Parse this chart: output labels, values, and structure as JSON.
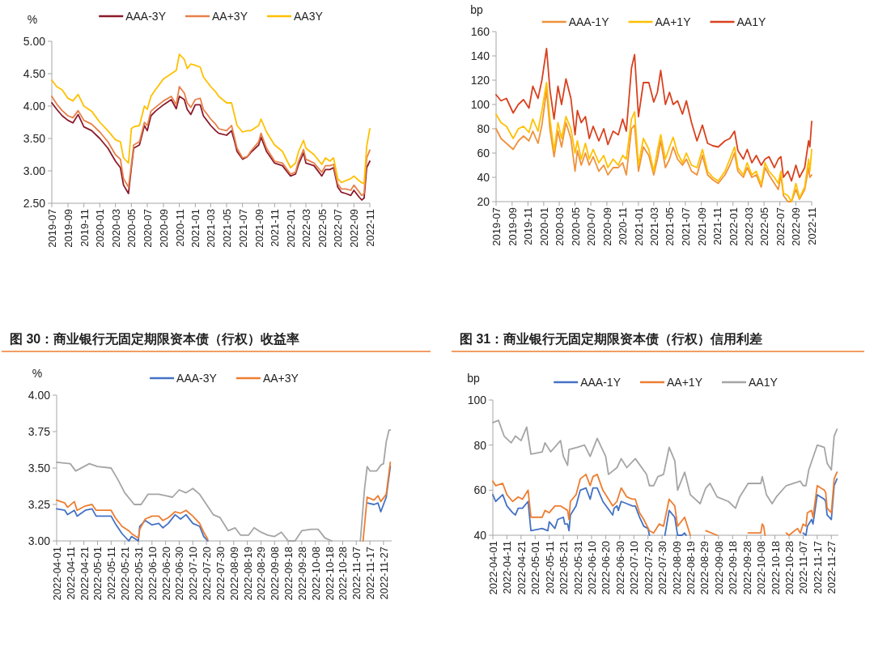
{
  "chart_data": [
    {
      "type": "line",
      "ylabel": "%",
      "legend": "top",
      "x": [
        "2019-07-01",
        "2019-07-20",
        "2019-08-10",
        "2019-09-01",
        "2019-09-20",
        "2019-10-10",
        "2019-11-01",
        "2019-12-01",
        "2020-01-01",
        "2020-02-01",
        "2020-03-01",
        "2020-03-20",
        "2020-04-01",
        "2020-04-20",
        "2020-05-01",
        "2020-05-10",
        "2020-06-01",
        "2020-06-20",
        "2020-07-01",
        "2020-07-15",
        "2020-08-01",
        "2020-09-01",
        "2020-10-01",
        "2020-10-20",
        "2020-11-01",
        "2020-11-20",
        "2020-12-01",
        "2020-12-15",
        "2021-01-01",
        "2021-01-20",
        "2021-02-01",
        "2021-03-01",
        "2021-03-20",
        "2021-04-01",
        "2021-05-01",
        "2021-05-20",
        "2021-06-01",
        "2021-06-10",
        "2021-07-01",
        "2021-07-20",
        "2021-08-01",
        "2021-09-01",
        "2021-09-10",
        "2021-10-01",
        "2021-11-01",
        "2021-12-01",
        "2022-01-01",
        "2022-01-20",
        "2022-02-01",
        "2022-02-20",
        "2022-03-01",
        "2022-04-01",
        "2022-05-01",
        "2022-05-15",
        "2022-06-01",
        "2022-06-15",
        "2022-07-01",
        "2022-07-15",
        "2022-08-01",
        "2022-08-20",
        "2022-09-01",
        "2022-09-20",
        "2022-10-01",
        "2022-10-10",
        "2022-10-20",
        "2022-11-01"
      ],
      "series": [
        {
          "name": "AAA-3Y",
          "color": "#8b1a2b",
          "values": [
            4.05,
            3.95,
            3.85,
            3.78,
            3.74,
            3.87,
            3.68,
            3.62,
            3.5,
            3.35,
            3.15,
            3.05,
            2.78,
            2.65,
            3.05,
            3.35,
            3.4,
            3.7,
            3.62,
            3.85,
            3.92,
            4.02,
            4.1,
            3.96,
            4.15,
            4.1,
            3.95,
            3.87,
            4.02,
            4.02,
            3.85,
            3.7,
            3.62,
            3.58,
            3.55,
            3.62,
            3.45,
            3.3,
            3.18,
            3.22,
            3.28,
            3.4,
            3.52,
            3.3,
            3.12,
            3.08,
            2.92,
            2.95,
            3.1,
            3.28,
            3.12,
            3.08,
            2.92,
            3.02,
            3.02,
            3.05,
            2.75,
            2.67,
            2.65,
            2.62,
            2.7,
            2.6,
            2.55,
            2.58,
            3.05,
            3.15
          ]
        },
        {
          "name": "AA+3Y",
          "color": "#e8804a",
          "values": [
            4.15,
            4.03,
            3.93,
            3.85,
            3.82,
            3.93,
            3.78,
            3.72,
            3.6,
            3.45,
            3.25,
            3.18,
            2.88,
            2.75,
            3.1,
            3.4,
            3.45,
            3.75,
            3.7,
            3.92,
            3.98,
            4.08,
            4.15,
            4.02,
            4.3,
            4.2,
            4.05,
            3.98,
            4.1,
            4.12,
            3.95,
            3.8,
            3.72,
            3.65,
            3.62,
            3.7,
            3.5,
            3.35,
            3.2,
            3.22,
            3.3,
            3.45,
            3.58,
            3.35,
            3.15,
            3.12,
            2.95,
            2.98,
            3.15,
            3.33,
            3.18,
            3.12,
            2.98,
            3.08,
            3.08,
            3.1,
            2.8,
            2.72,
            2.72,
            2.7,
            2.78,
            2.68,
            2.62,
            2.65,
            3.2,
            3.32
          ]
        },
        {
          "name": "AA3Y",
          "color": "#ffc000",
          "values": [
            4.4,
            4.3,
            4.25,
            4.12,
            4.08,
            4.18,
            4.0,
            3.92,
            3.75,
            3.62,
            3.48,
            3.45,
            3.2,
            3.12,
            3.65,
            3.68,
            3.7,
            4.0,
            3.95,
            4.15,
            4.25,
            4.42,
            4.5,
            4.55,
            4.8,
            4.72,
            4.58,
            4.65,
            4.63,
            4.6,
            4.45,
            4.3,
            4.22,
            4.15,
            4.05,
            4.05,
            3.85,
            3.7,
            3.6,
            3.62,
            3.62,
            3.7,
            3.8,
            3.6,
            3.4,
            3.3,
            3.05,
            3.12,
            3.3,
            3.47,
            3.35,
            3.25,
            3.1,
            3.2,
            3.15,
            3.2,
            2.88,
            2.82,
            2.85,
            2.88,
            2.92,
            2.85,
            2.82,
            2.8,
            3.38,
            3.65
          ]
        }
      ],
      "xlim": [
        "2019-07-01",
        "2022-11-01"
      ],
      "xticks": [
        "2019-07",
        "2019-09",
        "2019-11",
        "2020-01",
        "2020-03",
        "2020-05",
        "2020-07",
        "2020-09",
        "2020-11",
        "2021-01",
        "2021-03",
        "2021-05",
        "2021-07",
        "2021-09",
        "2021-11",
        "2022-01",
        "2022-03",
        "2022-05",
        "2022-07",
        "2022-09",
        "2022-11"
      ],
      "ylim": [
        2.5,
        5
      ],
      "yticks": [
        {
          "value": 2.5,
          "label": "2.50"
        },
        {
          "value": 3,
          "label": "3.00"
        },
        {
          "value": 3.5,
          "label": "3.50"
        },
        {
          "value": 4,
          "label": "4.00"
        },
        {
          "value": 4.5,
          "label": "4.50"
        },
        {
          "value": 5,
          "label": "5.00"
        }
      ]
    },
    {
      "type": "line",
      "ylabel": "bp",
      "legend": "top",
      "x": [
        "2019-07-01",
        "2019-07-20",
        "2019-08-10",
        "2019-09-05",
        "2019-09-25",
        "2019-10-15",
        "2019-11-05",
        "2019-11-20",
        "2019-12-10",
        "2019-12-25",
        "2020-01-12",
        "2020-01-25",
        "2020-02-10",
        "2020-02-25",
        "2020-03-10",
        "2020-03-27",
        "2020-04-15",
        "2020-05-01",
        "2020-05-10",
        "2020-05-25",
        "2020-06-10",
        "2020-06-25",
        "2020-07-10",
        "2020-08-01",
        "2020-08-20",
        "2020-09-05",
        "2020-09-25",
        "2020-10-15",
        "2020-11-01",
        "2020-11-15",
        "2020-12-05",
        "2020-12-17",
        "2021-01-01",
        "2021-01-20",
        "2021-02-10",
        "2021-03-01",
        "2021-03-15",
        "2021-03-28",
        "2021-04-15",
        "2021-05-01",
        "2021-05-15",
        "2021-06-01",
        "2021-06-20",
        "2021-07-05",
        "2021-07-25",
        "2021-08-15",
        "2021-09-05",
        "2021-09-25",
        "2021-10-15",
        "2021-11-05",
        "2021-12-01",
        "2021-12-20",
        "2022-01-07",
        "2022-01-20",
        "2022-02-10",
        "2022-02-25",
        "2022-03-15",
        "2022-04-01",
        "2022-04-20",
        "2022-05-05",
        "2022-05-20",
        "2022-06-10",
        "2022-06-25",
        "2022-07-05",
        "2022-07-15",
        "2022-08-01",
        "2022-08-15",
        "2022-09-01",
        "2022-09-15",
        "2022-10-05",
        "2022-10-20",
        "2022-10-25",
        "2022-11-01"
      ],
      "series": [
        {
          "name": "AAA-1Y",
          "color": "#f0913b",
          "values": [
            80,
            72,
            68,
            63,
            70,
            74,
            70,
            78,
            68,
            83,
            112,
            80,
            57,
            78,
            65,
            85,
            72,
            45,
            62,
            50,
            60,
            50,
            57,
            45,
            50,
            42,
            48,
            48,
            52,
            42,
            80,
            83,
            45,
            65,
            58,
            42,
            55,
            70,
            48,
            55,
            65,
            55,
            50,
            55,
            45,
            42,
            58,
            42,
            38,
            35,
            42,
            50,
            60,
            45,
            40,
            48,
            40,
            42,
            32,
            48,
            42,
            35,
            30,
            42,
            25,
            20,
            20,
            30,
            22,
            30,
            48,
            40,
            42
          ]
        },
        {
          "name": "AA+1Y",
          "color": "#ffc000",
          "values": [
            92,
            85,
            82,
            72,
            80,
            82,
            77,
            88,
            78,
            95,
            118,
            88,
            62,
            85,
            72,
            90,
            80,
            60,
            70,
            55,
            68,
            55,
            63,
            52,
            58,
            48,
            55,
            50,
            58,
            55,
            88,
            94,
            50,
            72,
            63,
            45,
            62,
            75,
            55,
            65,
            73,
            60,
            52,
            60,
            50,
            48,
            63,
            45,
            40,
            37,
            45,
            55,
            65,
            48,
            42,
            52,
            42,
            45,
            34,
            52,
            45,
            40,
            35,
            45,
            27,
            25,
            20,
            35,
            23,
            32,
            55,
            45,
            63
          ]
        },
        {
          "name": "AA1Y",
          "color": "#d9411e",
          "values": [
            108,
            103,
            105,
            93,
            100,
            104,
            97,
            115,
            105,
            120,
            146,
            112,
            88,
            115,
            100,
            121,
            105,
            75,
            95,
            85,
            90,
            72,
            82,
            70,
            80,
            67,
            78,
            75,
            88,
            78,
            130,
            141,
            90,
            118,
            118,
            102,
            110,
            128,
            100,
            110,
            100,
            103,
            92,
            103,
            85,
            70,
            83,
            68,
            66,
            65,
            70,
            72,
            78,
            62,
            55,
            63,
            52,
            58,
            50,
            55,
            57,
            48,
            55,
            57,
            40,
            45,
            37,
            50,
            40,
            48,
            70,
            65,
            86
          ]
        }
      ],
      "xlim": [
        "2019-07-01",
        "2022-11-01"
      ],
      "xticks": [
        "2019-07",
        "2019-09",
        "2019-11",
        "2020-01",
        "2020-03",
        "2020-05",
        "2020-07",
        "2020-09",
        "2020-11",
        "2021-01",
        "2021-03",
        "2021-05",
        "2021-07",
        "2021-09",
        "2021-11",
        "2022-01",
        "2022-03",
        "2022-05",
        "2022-07",
        "2022-09",
        "2022-11"
      ],
      "ylim": [
        20,
        160
      ],
      "yticks": [
        20,
        40,
        60,
        80,
        100,
        120,
        140,
        160
      ]
    },
    {
      "type": "line",
      "title": "图 30：商业银行无固定期限资本债（行权）收益率",
      "ylabel": "%",
      "legend": "top",
      "series": [
        {
          "name": "AAA-3Y",
          "color": "#4472c4",
          "x": [
            "2022-04-01",
            "2022-04-07",
            "2022-04-09",
            "2022-04-14",
            "2022-04-16",
            "2022-04-22",
            "2022-04-27",
            "2022-04-30",
            "2022-05-11",
            "2022-05-14",
            "2022-05-19",
            "2022-05-24",
            "2022-05-26",
            "2022-05-31",
            "2022-06-01",
            "2022-06-05",
            "2022-06-10",
            "2022-06-15",
            "2022-06-18",
            "2022-06-22",
            "2022-06-27",
            "2022-07-01",
            "2022-07-05",
            "2022-07-10",
            "2022-07-15",
            "2022-07-18",
            "2022-07-21",
            "2022-09-01",
            "2022-11-12",
            "2022-11-15",
            "2022-11-20",
            "2022-11-23",
            "2022-11-25",
            "2022-11-29",
            "2022-12-02"
          ],
          "values": [
            3.22,
            3.21,
            3.18,
            3.21,
            3.17,
            3.21,
            3.22,
            3.17,
            3.17,
            3.12,
            3.05,
            3.0,
            3.03,
            3.0,
            3.1,
            3.14,
            3.11,
            3.12,
            3.09,
            3.12,
            3.18,
            3.15,
            3.18,
            3.12,
            3.1,
            3.03,
            3.0,
            null,
            null,
            3.26,
            3.25,
            3.26,
            3.2,
            3.3,
            3.51
          ]
        },
        {
          "name": "AA+3Y",
          "color": "#ed7d31",
          "x": [
            "2022-04-01",
            "2022-04-07",
            "2022-04-09",
            "2022-04-14",
            "2022-04-16",
            "2022-04-22",
            "2022-04-27",
            "2022-04-30",
            "2022-05-11",
            "2022-05-14",
            "2022-05-19",
            "2022-05-24",
            "2022-05-26",
            "2022-05-31",
            "2022-06-01",
            "2022-06-05",
            "2022-06-10",
            "2022-06-15",
            "2022-06-18",
            "2022-06-22",
            "2022-06-27",
            "2022-07-01",
            "2022-07-05",
            "2022-07-10",
            "2022-07-15",
            "2022-07-18",
            "2022-07-21",
            "2022-09-01",
            "2022-11-12",
            "2022-11-15",
            "2022-11-20",
            "2022-11-23",
            "2022-11-25",
            "2022-11-29",
            "2022-12-02"
          ],
          "values": [
            3.28,
            3.26,
            3.23,
            3.27,
            3.21,
            3.24,
            3.25,
            3.21,
            3.21,
            3.16,
            3.1,
            3.07,
            3.05,
            3.02,
            3.08,
            3.15,
            3.17,
            3.17,
            3.14,
            3.16,
            3.2,
            3.19,
            3.21,
            3.17,
            3.12,
            3.06,
            3.01,
            null,
            3.0,
            3.3,
            3.28,
            3.31,
            3.27,
            3.32,
            3.54
          ]
        },
        {
          "color": "#a5a5a5",
          "x": [
            "2022-04-01",
            "2022-04-11",
            "2022-04-15",
            "2022-04-25",
            "2022-05-01",
            "2022-05-11",
            "2022-05-16",
            "2022-05-21",
            "2022-05-28",
            "2022-06-02",
            "2022-06-07",
            "2022-06-15",
            "2022-06-20",
            "2022-06-25",
            "2022-06-30",
            "2022-07-05",
            "2022-07-10",
            "2022-07-15",
            "2022-07-20",
            "2022-07-25",
            "2022-07-30",
            "2022-08-05",
            "2022-08-10",
            "2022-08-14",
            "2022-08-20",
            "2022-08-24",
            "2022-08-29",
            "2022-09-03",
            "2022-09-08",
            "2022-09-13",
            "2022-09-18",
            "2022-09-23",
            "2022-09-28",
            "2022-10-05",
            "2022-10-10",
            "2022-10-15",
            "2022-10-20",
            "2022-11-01",
            "2022-11-10",
            "2022-11-13",
            "2022-11-15",
            "2022-11-17",
            "2022-11-22",
            "2022-11-25",
            "2022-11-27",
            "2022-11-29",
            "2022-12-01",
            "2022-12-02"
          ],
          "values": [
            3.54,
            3.53,
            3.48,
            3.53,
            3.51,
            3.5,
            3.42,
            3.33,
            3.25,
            3.25,
            3.32,
            3.32,
            3.31,
            3.3,
            3.35,
            3.33,
            3.36,
            3.32,
            3.25,
            3.18,
            3.16,
            3.07,
            3.09,
            3.04,
            3.04,
            3.09,
            3.06,
            3.04,
            3.03,
            3.06,
            3.0,
            3.0,
            3.07,
            3.08,
            3.08,
            3.02,
            3.0,
            null,
            3.0,
            3.35,
            3.51,
            3.48,
            3.48,
            3.52,
            3.53,
            3.68,
            3.76,
            3.76
          ]
        }
      ],
      "xlim": [
        "2022-04-01",
        "2022-12-03"
      ],
      "xticks": [
        "2022-04-01",
        "2022-04-11",
        "2022-04-21",
        "2022-05-01",
        "2022-05-11",
        "2022-05-21",
        "2022-05-31",
        "2022-06-10",
        "2022-06-20",
        "2022-06-30",
        "2022-07-10",
        "2022-07-20",
        "2022-07-30",
        "2022-08-09",
        "2022-08-19",
        "2022-08-29",
        "2022-09-08",
        "2022-09-18",
        "2022-09-28",
        "2022-10-08",
        "2022-10-18",
        "2022-10-28",
        "2022-11-07",
        "2022-11-17",
        "2022-11-27"
      ],
      "ylim": [
        3,
        4
      ],
      "yticks": [
        {
          "value": 3,
          "label": "3.00"
        },
        3.25,
        {
          "value": 3.5,
          "label": "3.50"
        },
        3.75,
        {
          "value": 4,
          "label": "4.00"
        }
      ]
    },
    {
      "type": "line",
      "title": "图 31：商业银行无固定期限资本债（行权）信用利差",
      "ylabel": "bp",
      "legend": "top",
      "series": [
        {
          "name": "AAA-1Y",
          "color": "#4472c4",
          "x": [
            "2022-04-01",
            "2022-04-03",
            "2022-04-08",
            "2022-04-11",
            "2022-04-15",
            "2022-04-17",
            "2022-04-19",
            "2022-04-22",
            "2022-04-26",
            "2022-04-28",
            "2022-05-06",
            "2022-05-10",
            "2022-05-11",
            "2022-05-15",
            "2022-05-17",
            "2022-05-21",
            "2022-05-22",
            "2022-05-24",
            "2022-05-25",
            "2022-05-26",
            "2022-05-30",
            "2022-06-02",
            "2022-06-06",
            "2022-06-09",
            "2022-06-11",
            "2022-06-14",
            "2022-06-18",
            "2022-06-25",
            "2022-06-26",
            "2022-06-28",
            "2022-06-29",
            "2022-07-01",
            "2022-07-05",
            "2022-07-09",
            "2022-07-11",
            "2022-07-14",
            "2022-07-17",
            "2022-07-20",
            "2022-07-21",
            "2022-07-28",
            "2022-08-01",
            "2022-08-04",
            "2022-08-08",
            "2022-08-10",
            "2022-08-13",
            "2022-08-15",
            "2022-08-16",
            "2022-09-15",
            "2022-11-07",
            "2022-11-09",
            "2022-11-10",
            "2022-11-13",
            "2022-11-14",
            "2022-11-17",
            "2022-11-22",
            "2022-11-23",
            "2022-11-24",
            "2022-11-27",
            "2022-11-29",
            "2022-12-01"
          ],
          "values": [
            58,
            55,
            58,
            53,
            50,
            49,
            52,
            52,
            55,
            42,
            43,
            42,
            46,
            43,
            47,
            48,
            45,
            45,
            42,
            49,
            53,
            60,
            61,
            56,
            61,
            61,
            55,
            49,
            52,
            53,
            51,
            55,
            54,
            53,
            53,
            48,
            44,
            43,
            40,
            null,
            40,
            51,
            48,
            40,
            40,
            41,
            40,
            null,
            41,
            40,
            44,
            47,
            45,
            58,
            56,
            55,
            49,
            47,
            62,
            65
          ]
        },
        {
          "name": "AA+1Y",
          "color": "#ed7d31",
          "x": [
            "2022-04-01",
            "2022-04-03",
            "2022-04-08",
            "2022-04-11",
            "2022-04-15",
            "2022-04-19",
            "2022-04-22",
            "2022-04-26",
            "2022-04-28",
            "2022-05-06",
            "2022-05-08",
            "2022-05-11",
            "2022-05-15",
            "2022-05-19",
            "2022-05-24",
            "2022-05-25",
            "2022-05-26",
            "2022-05-30",
            "2022-06-02",
            "2022-06-06",
            "2022-06-09",
            "2022-06-11",
            "2022-06-14",
            "2022-06-18",
            "2022-06-25",
            "2022-06-28",
            "2022-07-01",
            "2022-07-05",
            "2022-07-09",
            "2022-07-11",
            "2022-07-14",
            "2022-07-17",
            "2022-07-21",
            "2022-07-24",
            "2022-07-28",
            "2022-07-31",
            "2022-08-04",
            "2022-08-08",
            "2022-08-10",
            "2022-08-15",
            "2022-08-19",
            "2022-08-24",
            "2022-08-30",
            "2022-09-07",
            "2022-09-15",
            "2022-09-29",
            "2022-10-08",
            "2022-10-09",
            "2022-10-10",
            "2022-10-11",
            "2022-10-18",
            "2022-10-26",
            "2022-10-28",
            "2022-11-03",
            "2022-11-05",
            "2022-11-07",
            "2022-11-09",
            "2022-11-10",
            "2022-11-13",
            "2022-11-14",
            "2022-11-17",
            "2022-11-22",
            "2022-11-23",
            "2022-11-24",
            "2022-11-27",
            "2022-11-29",
            "2022-12-01"
          ],
          "values": [
            64,
            62,
            63,
            58,
            55,
            57,
            56,
            60,
            48,
            48,
            51,
            50,
            53,
            53,
            51,
            47,
            55,
            58,
            65,
            67,
            62,
            66,
            67,
            60,
            53,
            55,
            61,
            57,
            56,
            56,
            50,
            47,
            42,
            41,
            45,
            44,
            56,
            53,
            44,
            48,
            40,
            null,
            42,
            40,
            null,
            41,
            41,
            45,
            44,
            40,
            null,
            41,
            40,
            43,
            41,
            45,
            44,
            50,
            51,
            48,
            62,
            60,
            59,
            52,
            50,
            65,
            68
          ]
        },
        {
          "name": "AA1Y",
          "color": "#a5a5a5",
          "x": [
            "2022-04-01",
            "2022-04-05",
            "2022-04-09",
            "2022-04-14",
            "2022-04-17",
            "2022-04-21",
            "2022-04-25",
            "2022-04-28",
            "2022-05-06",
            "2022-05-08",
            "2022-05-12",
            "2022-05-19",
            "2022-05-21",
            "2022-05-24",
            "2022-05-25",
            "2022-05-31",
            "2022-06-05",
            "2022-06-09",
            "2022-06-14",
            "2022-06-20",
            "2022-06-22",
            "2022-06-28",
            "2022-07-01",
            "2022-07-05",
            "2022-07-11",
            "2022-07-19",
            "2022-07-21",
            "2022-07-24",
            "2022-07-27",
            "2022-07-31",
            "2022-08-04",
            "2022-08-08",
            "2022-08-10",
            "2022-08-15",
            "2022-08-19",
            "2022-08-26",
            "2022-08-30",
            "2022-09-02",
            "2022-09-07",
            "2022-09-15",
            "2022-09-20",
            "2022-09-23",
            "2022-09-29",
            "2022-10-08",
            "2022-10-09",
            "2022-10-12",
            "2022-10-16",
            "2022-10-19",
            "2022-10-26",
            "2022-11-05",
            "2022-11-07",
            "2022-11-09",
            "2022-11-11",
            "2022-11-17",
            "2022-11-22",
            "2022-11-24",
            "2022-11-27",
            "2022-11-29",
            "2022-12-01"
          ],
          "values": [
            90,
            91,
            84,
            81,
            84,
            82,
            88,
            76,
            77,
            81,
            77,
            82,
            75,
            71,
            78,
            79,
            80,
            75,
            83,
            75,
            67,
            70,
            74,
            70,
            74,
            67,
            62,
            62,
            66,
            67,
            79,
            73,
            60,
            68,
            58,
            54,
            61,
            63,
            57,
            55,
            52,
            57,
            63,
            63,
            66,
            58,
            54,
            57,
            62,
            64,
            62,
            62,
            69,
            80,
            79,
            72,
            69,
            84,
            87
          ]
        }
      ],
      "xlim": [
        "2022-04-01",
        "2022-12-02"
      ],
      "xticks": [
        "2022-04-01",
        "2022-04-11",
        "2022-04-21",
        "2022-05-01",
        "2022-05-11",
        "2022-05-21",
        "2022-05-31",
        "2022-06-10",
        "2022-06-20",
        "2022-06-30",
        "2022-07-10",
        "2022-07-20",
        "2022-07-30",
        "2022-08-09",
        "2022-08-19",
        "2022-08-29",
        "2022-09-08",
        "2022-09-18",
        "2022-09-28",
        "2022-10-08",
        "2022-10-18",
        "2022-10-28",
        "2022-11-07",
        "2022-11-17",
        "2022-11-27"
      ],
      "ylim": [
        40,
        100
      ],
      "yticks": [
        40,
        60,
        80,
        100
      ]
    }
  ]
}
